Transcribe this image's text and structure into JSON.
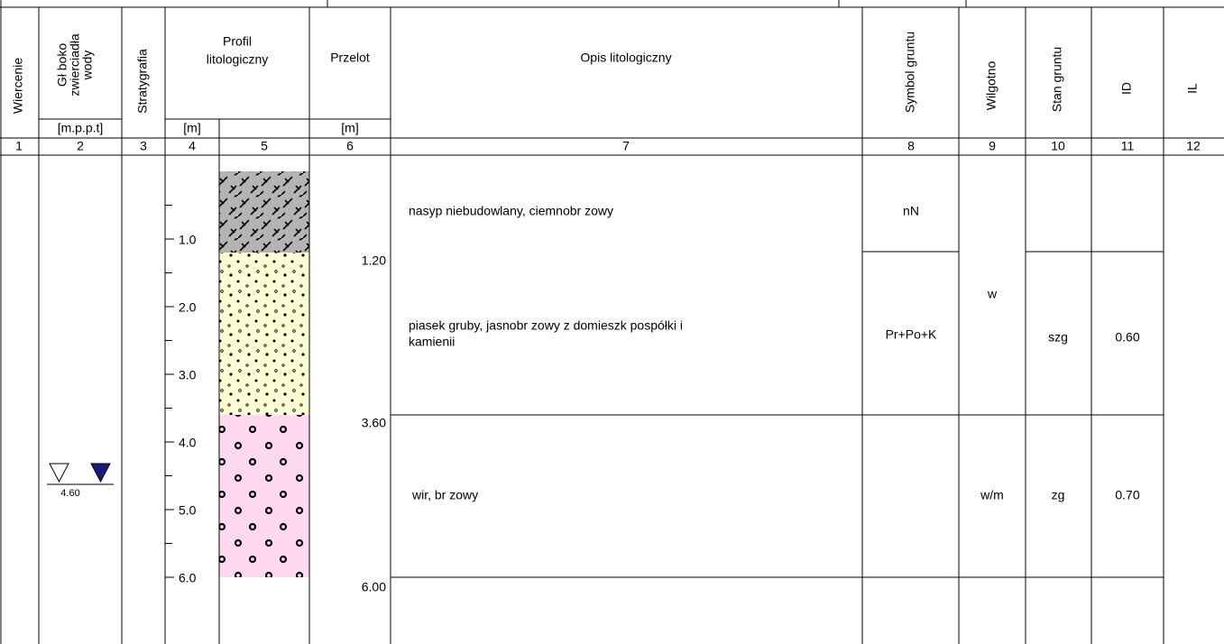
{
  "header": {
    "wiercenie": "Wiercenie",
    "water": [
      "Gł boko",
      "zwierciadła",
      "wody"
    ],
    "stratygrafia": "Stratygrafia",
    "profil": [
      "Profil",
      "litologiczny"
    ],
    "przelot": "Przelot",
    "opis": "Opis litologiczny",
    "symbol": "Symbol gruntu",
    "wilgotnosc": "Wilgotno",
    "stan": "Stan gruntu",
    "id": "ID",
    "il": "IL",
    "units": {
      "water": "[m.p.p.t]",
      "depth": "[m]",
      "przelot": "[m]"
    }
  },
  "column_numbers": [
    1,
    2,
    3,
    4,
    5,
    6,
    7,
    8,
    9,
    10,
    11,
    12
  ],
  "depth_scale": [
    "1.0",
    "2.0",
    "3.0",
    "4.0",
    "5.0",
    "6.0"
  ],
  "water_level": "4.60",
  "boundaries": [
    "1.20",
    "3.60",
    "6.00"
  ],
  "layers": [
    {
      "description": [
        "nasyp niebudowlany, ciemnobr zowy"
      ],
      "symbol": "nN"
    },
    {
      "description": [
        "piasek gruby, jasnobr zowy z domieszk  pospółki i",
        "kamienii"
      ],
      "symbol": "Pr+Po+K",
      "state": "szg",
      "id": "0.60"
    },
    {
      "description": [
        "wir, br zowy"
      ],
      "state": "zg",
      "id": "0.70"
    }
  ],
  "moisture": [
    "w",
    "w/m"
  ]
}
